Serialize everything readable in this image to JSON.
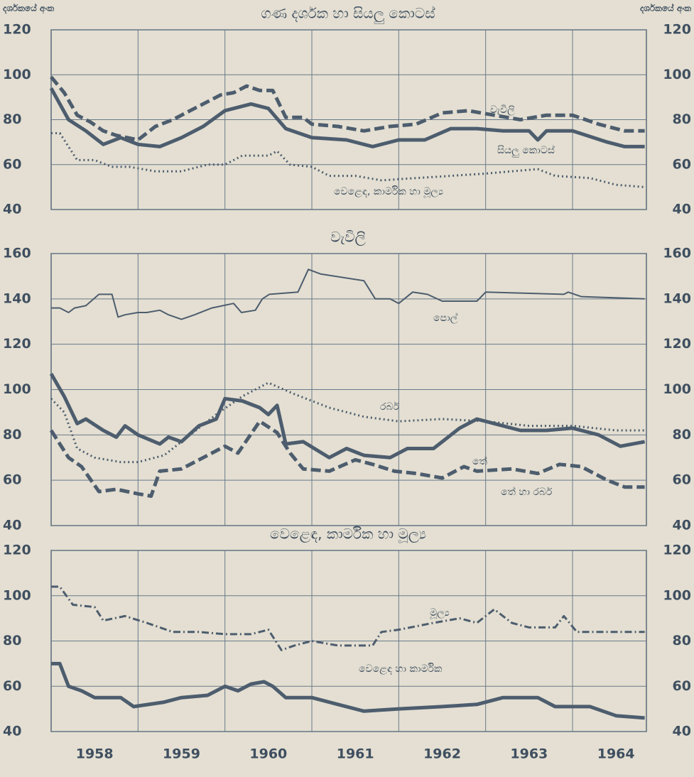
{
  "chart_data": [
    {
      "type": "line",
      "title": "ගණ දර්ශක හා සියලු කොටස්",
      "ylabel": "දර්ශකයේ අංක",
      "y2label": "දර්ශකයේ අංක",
      "xlim": [
        1958,
        1964.85
      ],
      "xgrid": [
        1959,
        1960,
        1961,
        1962,
        1963,
        1964
      ],
      "ylim": [
        40,
        120
      ],
      "yticks": [
        40,
        60,
        80,
        100,
        120
      ],
      "y2lim": [
        40,
        120
      ],
      "y2ticks": [
        40,
        60,
        80,
        100,
        120
      ],
      "grid": true,
      "series": [
        {
          "name": "වැවිලි",
          "color": "#4d5d6e",
          "style": "dashed",
          "width": 5,
          "x": [
            1958.0,
            1958.15,
            1958.3,
            1958.45,
            1958.6,
            1958.75,
            1959.0,
            1959.2,
            1959.4,
            1959.6,
            1959.8,
            1959.95,
            1960.1,
            1960.25,
            1960.4,
            1960.55,
            1960.7,
            1960.9,
            1961.0,
            1961.3,
            1961.6,
            1961.9,
            1962.2,
            1962.5,
            1962.8,
            1963.1,
            1963.4,
            1963.7,
            1964.0,
            1964.3,
            1964.6,
            1964.83
          ],
          "values": [
            99,
            92,
            82,
            79,
            75,
            73,
            71,
            77,
            80,
            84,
            88,
            91,
            92,
            95,
            93,
            93,
            81,
            81,
            78,
            77,
            75,
            77,
            78,
            83,
            84,
            82,
            80,
            82,
            82,
            78,
            75,
            75
          ]
        },
        {
          "name": "සියලු කොටස්",
          "color": "#4d5d6e",
          "style": "solid",
          "width": 5,
          "x": [
            1958.0,
            1958.2,
            1958.4,
            1958.6,
            1958.8,
            1959.0,
            1959.25,
            1959.5,
            1959.75,
            1960.0,
            1960.3,
            1960.5,
            1960.7,
            1961.0,
            1961.4,
            1961.7,
            1962.0,
            1962.3,
            1962.6,
            1962.9,
            1963.2,
            1963.5,
            1963.6,
            1963.7,
            1964.0,
            1964.4,
            1964.6,
            1964.83
          ],
          "values": [
            94,
            80,
            75,
            69,
            72,
            69,
            68,
            72,
            77,
            84,
            87,
            85,
            76,
            72,
            71,
            68,
            71,
            71,
            76,
            76,
            75,
            75,
            71,
            75,
            75,
            70,
            68,
            68
          ]
        },
        {
          "name": "වෙළෙඳ, කාර්මික හා මූල්‍ය",
          "color": "#4d5d6e",
          "style": "dotted",
          "width": 3,
          "x": [
            1958.0,
            1958.1,
            1958.3,
            1958.5,
            1958.7,
            1958.9,
            1959.2,
            1959.5,
            1959.8,
            1960.0,
            1960.2,
            1960.5,
            1960.6,
            1960.75,
            1961.0,
            1961.2,
            1961.5,
            1961.8,
            1962.2,
            1962.6,
            1963.0,
            1963.3,
            1963.6,
            1963.8,
            1964.2,
            1964.5,
            1964.83
          ],
          "values": [
            74,
            74,
            62,
            62,
            59,
            59,
            57,
            57,
            60,
            60,
            64,
            64,
            66,
            60,
            59,
            55,
            55,
            53,
            54,
            55,
            56,
            57,
            58,
            55,
            54,
            51,
            50
          ]
        }
      ]
    },
    {
      "type": "line",
      "title": "වැවිලි",
      "xlim": [
        1958,
        1964.85
      ],
      "xgrid": [
        1959,
        1960,
        1961,
        1962,
        1963,
        1964
      ],
      "ylim": [
        40,
        160
      ],
      "yticks": [
        40,
        60,
        80,
        100,
        120,
        140,
        160
      ],
      "y2lim": [
        40,
        160
      ],
      "y2ticks": [
        40,
        60,
        80,
        100,
        120,
        140,
        160
      ],
      "grid": true,
      "series": [
        {
          "name": "පොල්",
          "color": "#4d5d6e",
          "style": "solid",
          "width": 2,
          "x": [
            1958.0,
            1958.1,
            1958.2,
            1958.27,
            1958.4,
            1958.55,
            1958.7,
            1958.77,
            1958.85,
            1959.0,
            1959.1,
            1959.25,
            1959.35,
            1959.5,
            1959.65,
            1959.85,
            1960.1,
            1960.19,
            1960.35,
            1960.43,
            1960.51,
            1960.84,
            1960.96,
            1961.1,
            1961.6,
            1961.73,
            1961.9,
            1962.0,
            1962.16,
            1962.33,
            1962.5,
            1962.9,
            1963.0,
            1963.9,
            1963.95,
            1964.1,
            1964.83
          ],
          "values": [
            136,
            136,
            134,
            136,
            137,
            142,
            142,
            132,
            133,
            134,
            134,
            135,
            133,
            131,
            133,
            136,
            138,
            134,
            135,
            140,
            142,
            143,
            153,
            151,
            148,
            140,
            140,
            138,
            143,
            142,
            139,
            139,
            143,
            142,
            143,
            141,
            140
          ]
        },
        {
          "name": "රබර්",
          "color": "#4d5d6e",
          "style": "dotted",
          "width": 3,
          "x": [
            1958.0,
            1958.15,
            1958.3,
            1958.5,
            1958.8,
            1959.0,
            1959.3,
            1959.6,
            1959.9,
            1960.2,
            1960.5,
            1960.8,
            1961.2,
            1961.6,
            1962.0,
            1962.5,
            1963.0,
            1963.5,
            1964.0,
            1964.5,
            1964.83
          ],
          "values": [
            96,
            90,
            74,
            70,
            68,
            68,
            71,
            80,
            89,
            97,
            103,
            98,
            92,
            88,
            86,
            87,
            86,
            84,
            84,
            82,
            82
          ]
        },
        {
          "name": "තේ",
          "color": "#4d5d6e",
          "style": "solid",
          "width": 5,
          "x": [
            1958.0,
            1958.15,
            1958.3,
            1958.4,
            1958.6,
            1958.75,
            1958.85,
            1959.0,
            1959.25,
            1959.35,
            1959.5,
            1959.7,
            1959.9,
            1960.0,
            1960.2,
            1960.4,
            1960.5,
            1960.6,
            1960.7,
            1960.9,
            1961.2,
            1961.4,
            1961.6,
            1961.9,
            1962.1,
            1962.4,
            1962.7,
            1962.9,
            1963.1,
            1963.4,
            1963.7,
            1964.0,
            1964.3,
            1964.55,
            1964.83
          ],
          "values": [
            107,
            97,
            85,
            87,
            82,
            79,
            84,
            80,
            76,
            79,
            77,
            84,
            87,
            96,
            95,
            92,
            89,
            93,
            76,
            77,
            70,
            74,
            71,
            70,
            74,
            74,
            83,
            87,
            85,
            82,
            82,
            83,
            80,
            75,
            77
          ]
        },
        {
          "name": "තේ හා රබර්",
          "color": "#4d5d6e",
          "style": "dashed",
          "width": 5,
          "x": [
            1958.0,
            1958.2,
            1958.35,
            1958.55,
            1958.75,
            1959.0,
            1959.15,
            1959.25,
            1959.5,
            1959.75,
            1960.0,
            1960.15,
            1960.4,
            1960.6,
            1960.75,
            1960.9,
            1961.2,
            1961.5,
            1961.7,
            1961.95,
            1962.2,
            1962.5,
            1962.75,
            1962.9,
            1963.3,
            1963.6,
            1963.85,
            1964.1,
            1964.4,
            1964.6,
            1964.83
          ],
          "values": [
            82,
            70,
            66,
            55,
            56,
            54,
            53,
            64,
            65,
            70,
            75,
            72,
            86,
            81,
            72,
            65,
            64,
            69,
            67,
            64,
            63,
            61,
            66,
            64,
            65,
            63,
            67,
            66,
            60,
            57,
            57
          ]
        }
      ]
    },
    {
      "type": "line",
      "title": "වෙළෙඳ, කාර්මික හා මූල්‍ය",
      "xlim": [
        1958,
        1964.85
      ],
      "xgrid": [
        1959,
        1960,
        1961,
        1962,
        1963,
        1964
      ],
      "xticks": [
        {
          "value": 1958.5,
          "label": "1958"
        },
        {
          "value": 1959.5,
          "label": "1959"
        },
        {
          "value": 1960.5,
          "label": "1960"
        },
        {
          "value": 1961.5,
          "label": "1961"
        },
        {
          "value": 1962.5,
          "label": "1962"
        },
        {
          "value": 1963.5,
          "label": "1963"
        },
        {
          "value": 1964.5,
          "label": "1964"
        }
      ],
      "ylim": [
        40,
        120
      ],
      "yticks": [
        40,
        60,
        80,
        100,
        120
      ],
      "y2lim": [
        40,
        120
      ],
      "y2ticks": [
        40,
        60,
        80,
        100,
        120
      ],
      "grid": true,
      "series": [
        {
          "name": "මූල්‍ය",
          "color": "#4d5d6e",
          "style": "dashdot",
          "width": 3,
          "x": [
            1958.0,
            1958.1,
            1958.25,
            1958.5,
            1958.6,
            1958.85,
            1959.1,
            1959.4,
            1959.7,
            1960.0,
            1960.3,
            1960.5,
            1960.65,
            1960.8,
            1961.0,
            1961.3,
            1961.7,
            1961.8,
            1962.0,
            1962.4,
            1962.7,
            1962.9,
            1963.1,
            1963.3,
            1963.5,
            1963.8,
            1963.9,
            1964.05,
            1964.4,
            1964.83
          ],
          "values": [
            104,
            104,
            96,
            95,
            89,
            91,
            88,
            84,
            84,
            83,
            83,
            85,
            76,
            78,
            80,
            78,
            78,
            84,
            85,
            88,
            90,
            88,
            94,
            88,
            86,
            86,
            91,
            84,
            84,
            84
          ]
        },
        {
          "name": "වෙළෙඳ හා කාර්මික",
          "color": "#4d5d6e",
          "style": "solid",
          "width": 5,
          "x": [
            1958.0,
            1958.1,
            1958.2,
            1958.35,
            1958.5,
            1958.8,
            1958.95,
            1959.3,
            1959.5,
            1959.8,
            1960.0,
            1960.15,
            1960.3,
            1960.45,
            1960.55,
            1960.7,
            1961.0,
            1961.3,
            1961.6,
            1962.0,
            1962.5,
            1962.9,
            1963.2,
            1963.6,
            1963.8,
            1964.2,
            1964.5,
            1964.83
          ],
          "values": [
            70,
            70,
            60,
            58,
            55,
            55,
            51,
            53,
            55,
            56,
            60,
            58,
            61,
            62,
            60,
            55,
            55,
            52,
            49,
            50,
            51,
            52,
            55,
            55,
            51,
            51,
            47,
            46
          ]
        }
      ]
    }
  ]
}
